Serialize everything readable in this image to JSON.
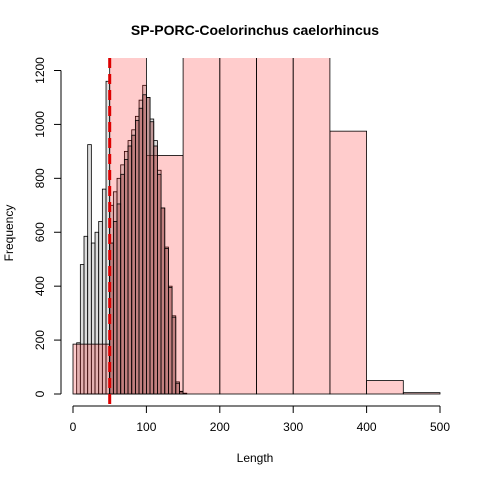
{
  "chart_data": {
    "type": "bar",
    "title": "SP-PORC-Coelorinchus caelorhincus",
    "xlabel": "Length",
    "ylabel": "Frequency",
    "xlim": [
      0,
      500
    ],
    "ylim": [
      0,
      1200
    ],
    "x_ticks": [
      "0",
      "100",
      "200",
      "300",
      "400",
      "500"
    ],
    "y_ticks": [
      "0",
      "200",
      "400",
      "600",
      "800",
      "1000",
      "1200"
    ],
    "grid": false,
    "legend": "none",
    "reference_line": {
      "x": 50,
      "color": "#dd0000",
      "style": "dashed"
    },
    "series": [
      {
        "color": "#bebebe80",
        "bins": [
          {
            "x0": 0,
            "x1": 5,
            "count": 0
          },
          {
            "x0": 5,
            "x1": 10,
            "count": 190
          },
          {
            "x0": 10,
            "x1": 15,
            "count": 480
          },
          {
            "x0": 15,
            "x1": 20,
            "count": 585
          },
          {
            "x0": 20,
            "x1": 25,
            "count": 925
          },
          {
            "x0": 25,
            "x1": 30,
            "count": 560
          },
          {
            "x0": 30,
            "x1": 35,
            "count": 600
          },
          {
            "x0": 35,
            "x1": 40,
            "count": 640
          },
          {
            "x0": 40,
            "x1": 45,
            "count": 760
          },
          {
            "x0": 45,
            "x1": 50,
            "count": 1160
          },
          {
            "x0": 50,
            "x1": 55,
            "count": 700
          },
          {
            "x0": 55,
            "x1": 60,
            "count": 750
          },
          {
            "x0": 60,
            "x1": 65,
            "count": 800
          },
          {
            "x0": 65,
            "x1": 70,
            "count": 850
          },
          {
            "x0": 70,
            "x1": 75,
            "count": 900
          },
          {
            "x0": 75,
            "x1": 80,
            "count": 940
          },
          {
            "x0": 80,
            "x1": 85,
            "count": 980
          },
          {
            "x0": 85,
            "x1": 90,
            "count": 1030
          },
          {
            "x0": 90,
            "x1": 95,
            "count": 1090
          },
          {
            "x0": 95,
            "x1": 100,
            "count": 1145
          },
          {
            "x0": 100,
            "x1": 105,
            "count": 1100
          },
          {
            "x0": 105,
            "x1": 110,
            "count": 1020
          },
          {
            "x0": 110,
            "x1": 115,
            "count": 940
          },
          {
            "x0": 115,
            "x1": 120,
            "count": 830
          },
          {
            "x0": 120,
            "x1": 125,
            "count": 690
          },
          {
            "x0": 125,
            "x1": 130,
            "count": 545
          },
          {
            "x0": 130,
            "x1": 135,
            "count": 400
          },
          {
            "x0": 135,
            "x1": 140,
            "count": 290
          },
          {
            "x0": 140,
            "x1": 145,
            "count": 45
          },
          {
            "x0": 145,
            "x1": 150,
            "count": 10
          },
          {
            "x0": 150,
            "x1": 155,
            "count": 3
          }
        ]
      },
      {
        "color": "#ff000033",
        "bins": [
          {
            "x0": 0,
            "x1": 50,
            "count": 185
          },
          {
            "x0": 50,
            "x1": 100,
            "count": 1300
          },
          {
            "x0": 100,
            "x1": 150,
            "count": 885
          },
          {
            "x0": 150,
            "x1": 200,
            "count": 1300
          },
          {
            "x0": 200,
            "x1": 250,
            "count": 1300
          },
          {
            "x0": 250,
            "x1": 300,
            "count": 1300
          },
          {
            "x0": 300,
            "x1": 350,
            "count": 1300
          },
          {
            "x0": 350,
            "x1": 400,
            "count": 975
          },
          {
            "x0": 400,
            "x1": 450,
            "count": 50
          },
          {
            "x0": 450,
            "x1": 500,
            "count": 5
          }
        ]
      },
      {
        "color": "#a0505080",
        "bins": [
          {
            "x0": 50,
            "x1": 55,
            "count": 560
          },
          {
            "x0": 55,
            "x1": 60,
            "count": 640
          },
          {
            "x0": 60,
            "x1": 65,
            "count": 705
          },
          {
            "x0": 65,
            "x1": 70,
            "count": 815
          },
          {
            "x0": 70,
            "x1": 75,
            "count": 870
          },
          {
            "x0": 75,
            "x1": 80,
            "count": 920
          },
          {
            "x0": 80,
            "x1": 85,
            "count": 960
          },
          {
            "x0": 85,
            "x1": 90,
            "count": 1015
          },
          {
            "x0": 90,
            "x1": 95,
            "count": 1060
          },
          {
            "x0": 95,
            "x1": 100,
            "count": 1110
          },
          {
            "x0": 100,
            "x1": 105,
            "count": 1100
          },
          {
            "x0": 105,
            "x1": 110,
            "count": 1010
          },
          {
            "x0": 110,
            "x1": 115,
            "count": 920
          },
          {
            "x0": 115,
            "x1": 120,
            "count": 815
          },
          {
            "x0": 120,
            "x1": 125,
            "count": 690
          },
          {
            "x0": 125,
            "x1": 130,
            "count": 540
          },
          {
            "x0": 130,
            "x1": 135,
            "count": 395
          },
          {
            "x0": 135,
            "x1": 140,
            "count": 285
          },
          {
            "x0": 140,
            "x1": 145,
            "count": 40
          },
          {
            "x0": 145,
            "x1": 150,
            "count": 8
          }
        ]
      }
    ]
  }
}
